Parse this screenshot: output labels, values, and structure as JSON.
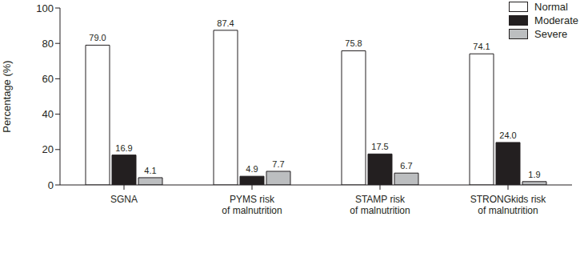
{
  "chart_data": {
    "type": "bar",
    "categories": [
      "SGNA",
      "PYMS risk\nof malnutrition",
      "STAMP risk\nof malnutrition",
      "STRONGkids risk\nof malnutrition"
    ],
    "series": [
      {
        "name": "Normal",
        "color": "#ffffff",
        "values": [
          79.0,
          87.4,
          75.8,
          74.1
        ],
        "value_labels": [
          "79.0",
          "87.4",
          "75.8",
          "74.1"
        ]
      },
      {
        "name": "Moderate",
        "color": "#231f20",
        "values": [
          16.9,
          4.9,
          17.5,
          24.0
        ],
        "value_labels": [
          "16.9",
          "4.9",
          "17.5",
          "24.0"
        ]
      },
      {
        "name": "Severe",
        "color": "#bcbec0",
        "values": [
          4.1,
          7.7,
          6.7,
          1.9
        ],
        "value_labels": [
          "4.1",
          "7.7",
          "6.7",
          "1.9"
        ]
      }
    ],
    "y_label": "Percentage (%)",
    "ylim": [
      0,
      100
    ],
    "yticks": [
      0,
      20,
      40,
      60,
      80,
      100
    ],
    "grid": false,
    "legend": "upper right",
    "data_labels": true
  }
}
